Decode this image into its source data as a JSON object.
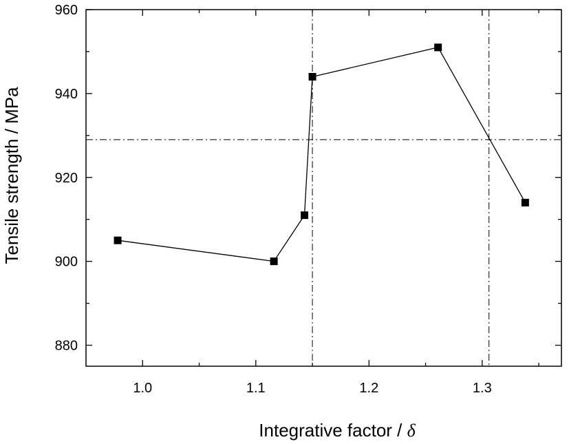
{
  "chart_data": {
    "type": "scatter",
    "title": "",
    "xlabel": "Integrative factor /",
    "xlabel_symbol": "δ",
    "ylabel": "Tensile strength / MPa",
    "xlim": [
      0.95,
      1.37
    ],
    "ylim": [
      875,
      960
    ],
    "x_ticks": [
      1.0,
      1.1,
      1.2,
      1.3
    ],
    "x_tick_labels": [
      "1.0",
      "1.1",
      "1.2",
      "1.3"
    ],
    "x_minor_ticks": [
      1.05,
      1.15,
      1.25,
      1.35
    ],
    "y_ticks": [
      880,
      900,
      920,
      940,
      960
    ],
    "y_tick_labels": [
      "880",
      "900",
      "920",
      "940",
      "960"
    ],
    "y_minor_ticks": [
      890,
      910,
      930,
      950
    ],
    "series": [
      {
        "x": [
          0.978,
          1.116,
          1.143,
          1.15,
          1.261,
          1.338
        ],
        "y": [
          905,
          900,
          911,
          944,
          951,
          914
        ],
        "marker": "square",
        "line": "solid",
        "color": "#000000"
      }
    ],
    "reference_lines": {
      "vertical_x": [
        1.15,
        1.306
      ],
      "horizontal_y": [
        929
      ],
      "style": "dash-dot"
    },
    "grid": false,
    "legend": "none"
  }
}
